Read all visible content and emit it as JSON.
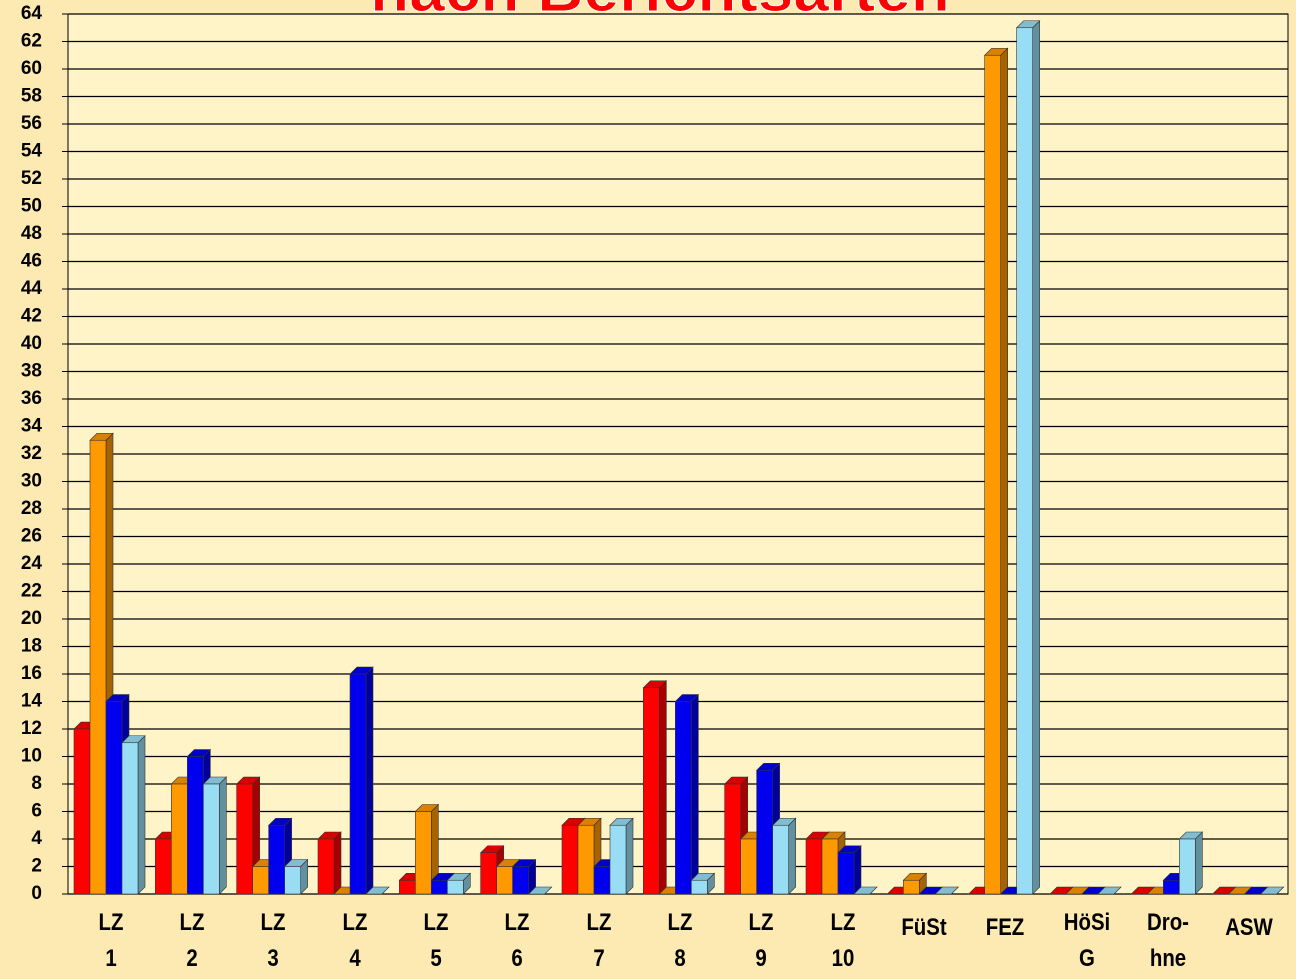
{
  "chart_data": {
    "type": "bar3d",
    "title": "nach Berichtsarten",
    "categories": [
      "LZ\n1",
      "LZ\n2",
      "LZ\n3",
      "LZ\n4",
      "LZ\n5",
      "LZ\n6",
      "LZ\n7",
      "LZ\n8",
      "LZ\n9",
      "LZ\n10",
      "FüSt",
      "FEZ",
      "HöSi\nG",
      "Dro-\nhne",
      "ASW"
    ],
    "series": [
      {
        "color": "#ff0000",
        "values": [
          12,
          4,
          8,
          4,
          1,
          3,
          5,
          15,
          8,
          4,
          0,
          0,
          0,
          0,
          0
        ]
      },
      {
        "color": "#ff9900",
        "values": [
          33,
          8,
          2,
          0,
          6,
          2,
          5,
          0,
          4,
          4,
          1,
          61,
          0,
          0,
          0
        ]
      },
      {
        "color": "#0000ee",
        "values": [
          14,
          10,
          5,
          16,
          1,
          2,
          2,
          14,
          9,
          3,
          0,
          0,
          0,
          1,
          0
        ]
      },
      {
        "color": "#99ddf5",
        "values": [
          11,
          8,
          2,
          0,
          1,
          0,
          5,
          1,
          5,
          0,
          0,
          63,
          0,
          4,
          0
        ]
      }
    ],
    "ylim": [
      0,
      64
    ],
    "yticks": [
      0,
      2,
      4,
      6,
      8,
      10,
      12,
      14,
      16,
      18,
      20,
      22,
      24,
      26,
      28,
      30,
      32,
      34,
      36,
      38,
      40,
      42,
      44,
      46,
      48,
      50,
      52,
      54,
      56,
      58,
      60,
      62,
      64
    ],
    "grid": true
  }
}
